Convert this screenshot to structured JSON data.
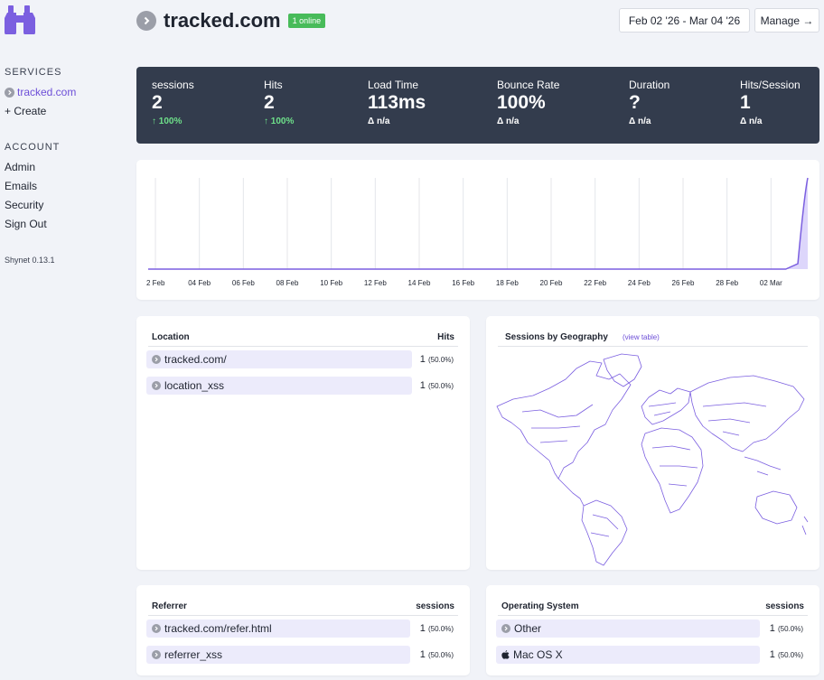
{
  "sidebar": {
    "services_heading": "SERVICES",
    "services": [
      {
        "label": "tracked.com",
        "icon": "chevron-right-circle-icon"
      },
      {
        "label": "+ Create"
      }
    ],
    "account_heading": "ACCOUNT",
    "account_items": [
      {
        "label": "Admin"
      },
      {
        "label": "Emails"
      },
      {
        "label": "Security"
      },
      {
        "label": "Sign Out"
      }
    ],
    "version": "Shynet 0.13.1"
  },
  "header": {
    "title": "tracked.com",
    "online_badge": "1 online",
    "date_range": "Feb 02 '26 - Mar 04 '26",
    "manage_label": "Manage →"
  },
  "stats": [
    {
      "label": "sessions",
      "value": "2",
      "delta": "↑ 100%",
      "trend": "up"
    },
    {
      "label": "Hits",
      "value": "2",
      "delta": "↑ 100%",
      "trend": "up"
    },
    {
      "label": "Load Time",
      "value": "113ms",
      "delta": "Δ n/a",
      "trend": "none"
    },
    {
      "label": "Bounce Rate",
      "value": "100%",
      "delta": "Δ n/a",
      "trend": "none"
    },
    {
      "label": "Duration",
      "value": "?",
      "delta": "Δ n/a",
      "trend": "none"
    },
    {
      "label": "Hits/Session",
      "value": "1",
      "delta": "Δ n/a",
      "trend": "none"
    }
  ],
  "chart_data": {
    "type": "area",
    "x_tick_labels": [
      "2 Feb",
      "04 Feb",
      "06 Feb",
      "08 Feb",
      "10 Feb",
      "12 Feb",
      "14 Feb",
      "16 Feb",
      "18 Feb",
      "20 Feb",
      "22 Feb",
      "24 Feb",
      "26 Feb",
      "28 Feb",
      "02 Mar"
    ],
    "x": [
      "2026-02-02",
      "2026-02-03",
      "2026-02-04",
      "2026-02-05",
      "2026-02-06",
      "2026-02-07",
      "2026-02-08",
      "2026-02-09",
      "2026-02-10",
      "2026-02-11",
      "2026-02-12",
      "2026-02-13",
      "2026-02-14",
      "2026-02-15",
      "2026-02-16",
      "2026-02-17",
      "2026-02-18",
      "2026-02-19",
      "2026-02-20",
      "2026-02-21",
      "2026-02-22",
      "2026-02-23",
      "2026-02-24",
      "2026-02-25",
      "2026-02-26",
      "2026-02-27",
      "2026-02-28",
      "2026-03-01",
      "2026-03-02",
      "2026-03-03",
      "2026-03-04"
    ],
    "values": [
      0,
      0,
      0,
      0,
      0,
      0,
      0,
      0,
      0,
      0,
      0,
      0,
      0,
      0,
      0,
      0,
      0,
      0,
      0,
      0,
      0,
      0,
      0,
      0,
      0,
      0,
      0,
      0,
      0,
      0,
      2
    ],
    "ylim": [
      0,
      2
    ],
    "grid": true,
    "line_color": "#7b5fe0",
    "fill_color": "#ddd6fb"
  },
  "location": {
    "title": "Location",
    "col": "Hits",
    "rows": [
      {
        "label": "tracked.com/",
        "count": "1",
        "pct": "(50.0%)",
        "share": 0.5
      },
      {
        "label": "location_xss",
        "count": "1",
        "pct": "(50.0%)",
        "share": 0.5
      }
    ]
  },
  "geo": {
    "title": "Sessions by Geography",
    "view_table": "(view table)",
    "map_color": "#7b5fe0"
  },
  "referrer": {
    "title": "Referrer",
    "col": "sessions",
    "rows": [
      {
        "label": "tracked.com/refer.html",
        "count": "1",
        "pct": "(50.0%)",
        "share": 0.5
      },
      {
        "label": "referrer_xss",
        "count": "1",
        "pct": "(50.0%)",
        "share": 0.5
      }
    ]
  },
  "os": {
    "title": "Operating System",
    "col": "sessions",
    "rows": [
      {
        "label": "Other",
        "count": "1",
        "pct": "(50.0%)",
        "share": 0.5,
        "icon": "chevron-right-circle-icon"
      },
      {
        "label": "Mac OS X",
        "count": "1",
        "pct": "(50.0%)",
        "share": 0.5,
        "icon": "apple-icon"
      }
    ]
  },
  "colors": {
    "accent": "#6d4fd8",
    "banner_bg": "#333c4d",
    "badge_green": "#48bb5a",
    "delta_up": "#6ee08a",
    "row_bar": "#ecebfb"
  }
}
